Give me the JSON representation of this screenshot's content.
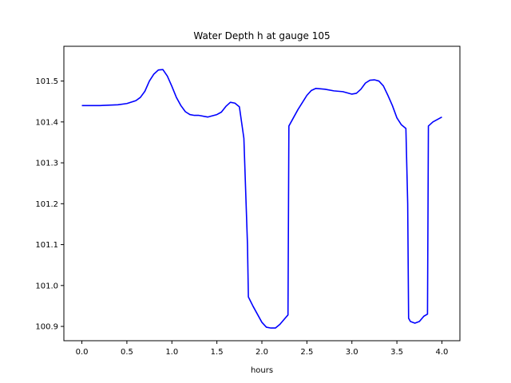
{
  "chart_data": {
    "type": "line",
    "title": "Water Depth h at gauge 105",
    "xlabel": "hours",
    "ylabel": "",
    "xlim": [
      -0.2,
      4.2
    ],
    "ylim": [
      100.865,
      101.585
    ],
    "x_ticks": [
      0.0,
      0.5,
      1.0,
      1.5,
      2.0,
      2.5,
      3.0,
      3.5,
      4.0
    ],
    "x_tick_labels": [
      "0.0",
      "0.5",
      "1.0",
      "1.5",
      "2.0",
      "2.5",
      "3.0",
      "3.5",
      "4.0"
    ],
    "y_ticks": [
      100.9,
      101.0,
      101.1,
      101.2,
      101.3,
      101.4,
      101.5
    ],
    "y_tick_labels": [
      "100.9",
      "101.0",
      "101.1",
      "101.2",
      "101.3",
      "101.4",
      "101.5"
    ],
    "grid": false,
    "series": [
      {
        "color": "#0000ff",
        "x": [
          0.0,
          0.2,
          0.4,
          0.5,
          0.6,
          0.65,
          0.7,
          0.75,
          0.8,
          0.85,
          0.9,
          0.95,
          1.0,
          1.05,
          1.1,
          1.15,
          1.2,
          1.25,
          1.3,
          1.4,
          1.5,
          1.55,
          1.6,
          1.65,
          1.7,
          1.75,
          1.8,
          1.84,
          1.85,
          1.9,
          1.95,
          2.0,
          2.05,
          2.1,
          2.15,
          2.2,
          2.25,
          2.29,
          2.3,
          2.4,
          2.5,
          2.55,
          2.6,
          2.7,
          2.8,
          2.9,
          3.0,
          3.05,
          3.1,
          3.15,
          3.2,
          3.25,
          3.3,
          3.35,
          3.4,
          3.45,
          3.5,
          3.55,
          3.6,
          3.62,
          3.63,
          3.65,
          3.7,
          3.75,
          3.8,
          3.84,
          3.85,
          3.9,
          4.0
        ],
        "y": [
          101.44,
          101.44,
          101.442,
          101.445,
          101.452,
          101.46,
          101.475,
          101.5,
          101.517,
          101.527,
          101.528,
          101.512,
          101.487,
          101.46,
          101.44,
          101.425,
          101.418,
          101.416,
          101.416,
          101.412,
          101.418,
          101.424,
          101.438,
          101.448,
          101.446,
          101.437,
          101.36,
          101.1,
          100.972,
          100.95,
          100.93,
          100.91,
          100.898,
          100.896,
          100.896,
          100.905,
          100.918,
          100.928,
          101.39,
          101.43,
          101.465,
          101.477,
          101.482,
          101.48,
          101.476,
          101.474,
          101.468,
          101.47,
          101.48,
          101.495,
          101.502,
          101.503,
          101.5,
          101.488,
          101.465,
          101.44,
          101.41,
          101.393,
          101.384,
          101.2,
          100.92,
          100.912,
          100.908,
          100.912,
          100.925,
          100.93,
          101.39,
          101.4,
          101.412
        ]
      }
    ]
  }
}
